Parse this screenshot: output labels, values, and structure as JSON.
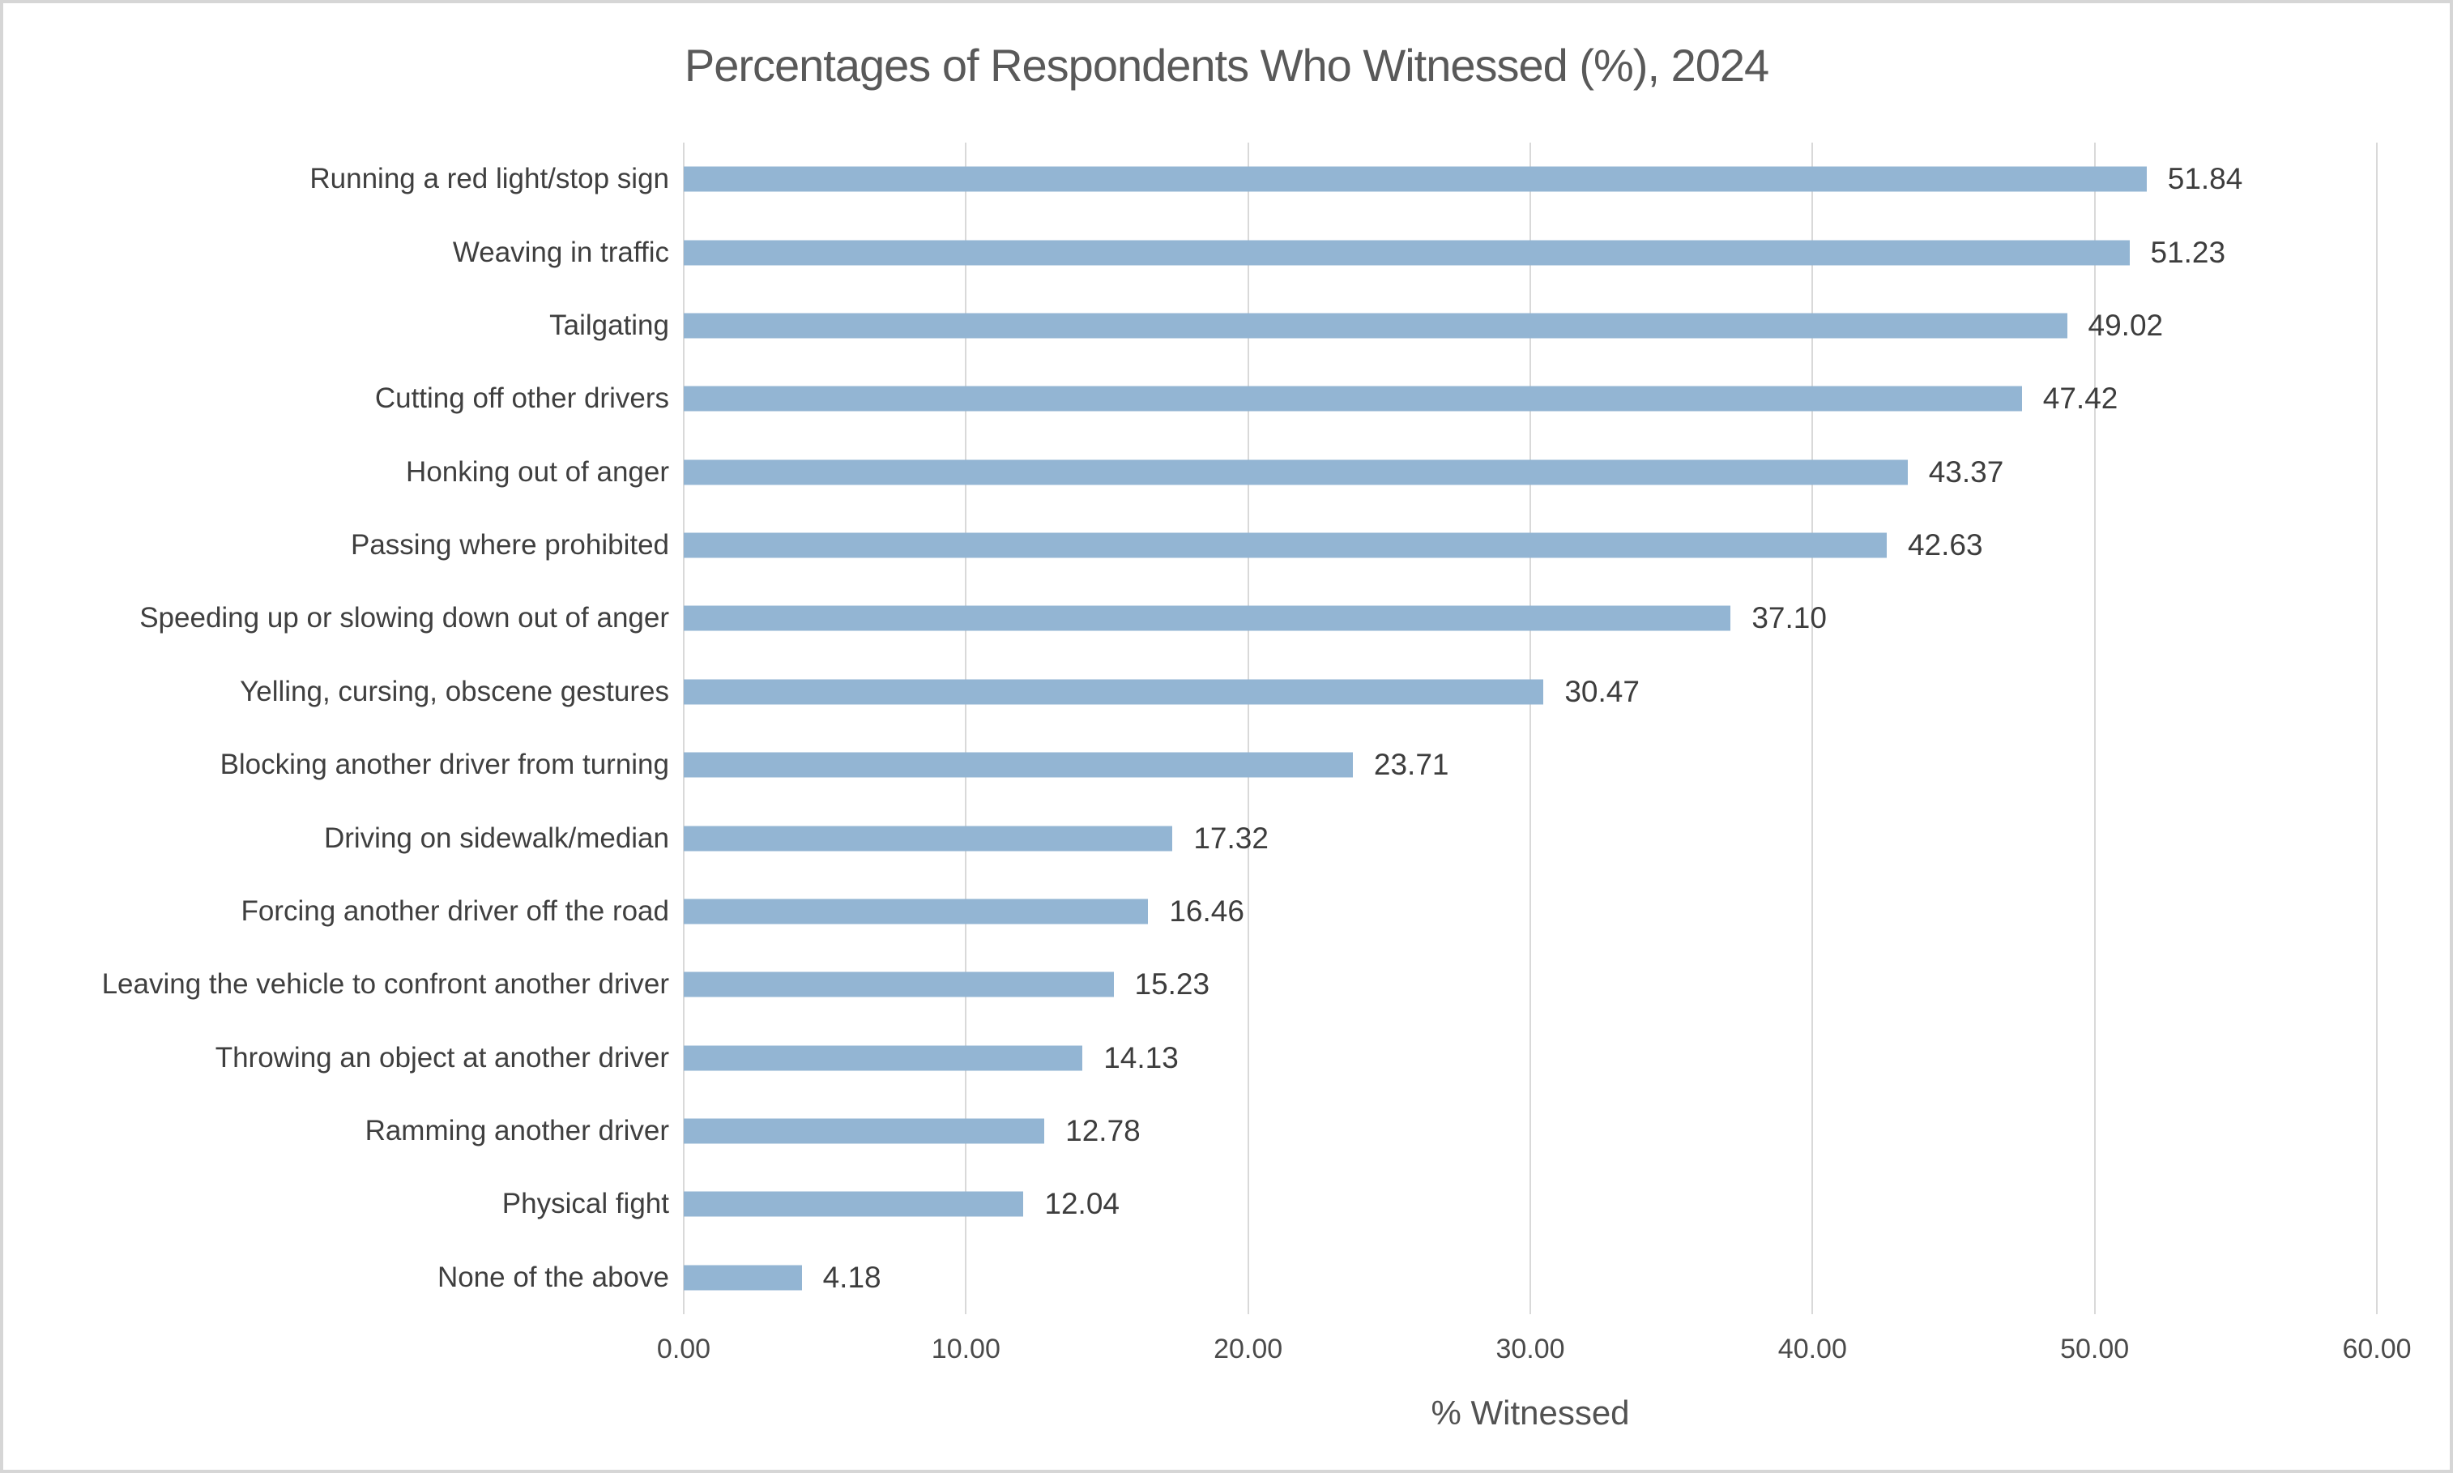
{
  "chart_data": {
    "type": "bar",
    "orientation": "horizontal",
    "title": "Percentages of Respondents Who Witnessed (%), 2024",
    "xlabel": "% Witnessed",
    "ylabel": "",
    "categories": [
      "Running a red light/stop sign",
      "Weaving in traffic",
      "Tailgating",
      "Cutting off other drivers",
      "Honking out of anger",
      "Passing where prohibited",
      "Speeding up or slowing down out of anger",
      "Yelling, cursing, obscene gestures",
      "Blocking another driver from turning",
      "Driving on sidewalk/median",
      "Forcing another driver off the road",
      "Leaving the vehicle to confront another driver",
      "Throwing an object at another driver",
      "Ramming another driver",
      "Physical fight",
      "None of the above"
    ],
    "values": [
      51.84,
      51.23,
      49.02,
      47.42,
      43.37,
      42.63,
      37.1,
      30.47,
      23.71,
      17.32,
      16.46,
      15.23,
      14.13,
      12.78,
      12.04,
      4.18
    ],
    "value_labels": [
      "51.84",
      "51.23",
      "49.02",
      "47.42",
      "43.37",
      "42.63",
      "37.10",
      "30.47",
      "23.71",
      "17.32",
      "16.46",
      "15.23",
      "14.13",
      "12.78",
      "12.04",
      "4.18"
    ],
    "xlim": [
      0,
      60
    ],
    "xticks": [
      "0.00",
      "10.00",
      "20.00",
      "30.00",
      "40.00",
      "50.00",
      "60.00"
    ],
    "grid": true,
    "legend": "none",
    "bar_color": "#93b5d3"
  }
}
